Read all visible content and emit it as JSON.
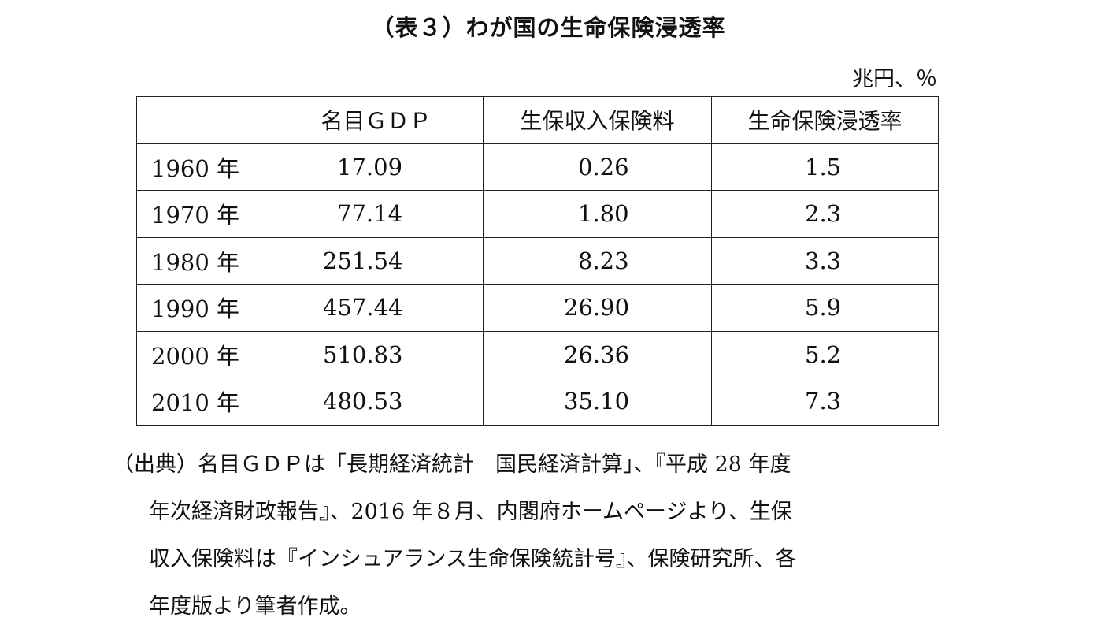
{
  "title": "（表３）わが国の生命保険浸透率",
  "unit": "兆円、％",
  "table": {
    "headers": [
      "",
      "名目ＧＤＰ",
      "生保収入保険料",
      "生命保険浸透率"
    ],
    "rows": [
      {
        "year": "1960 年",
        "gdp": "17.09",
        "premium": "0.26",
        "rate": "1.5"
      },
      {
        "year": "1970 年",
        "gdp": "77.14",
        "premium": "1.80",
        "rate": "2.3"
      },
      {
        "year": "1980 年",
        "gdp": "251.54",
        "premium": "8.23",
        "rate": "3.3"
      },
      {
        "year": "1990 年",
        "gdp": "457.44",
        "premium": "26.90",
        "rate": "5.9"
      },
      {
        "year": "2000 年",
        "gdp": "510.83",
        "premium": "26.36",
        "rate": "5.2"
      },
      {
        "year": "2010 年",
        "gdp": "480.53",
        "premium": "35.10",
        "rate": "7.3"
      }
    ]
  },
  "source": {
    "lines": [
      "（出典）名目ＧＤＰは「長期経済統計　国民経済計算」、『平成 28 年度",
      "年次経済財政報告』、2016 年８月、内閣府ホームページより、生保",
      "収入保険料は『インシュアランス生命保険統計号』、保険研究所、各",
      "年度版より筆者作成。"
    ]
  }
}
